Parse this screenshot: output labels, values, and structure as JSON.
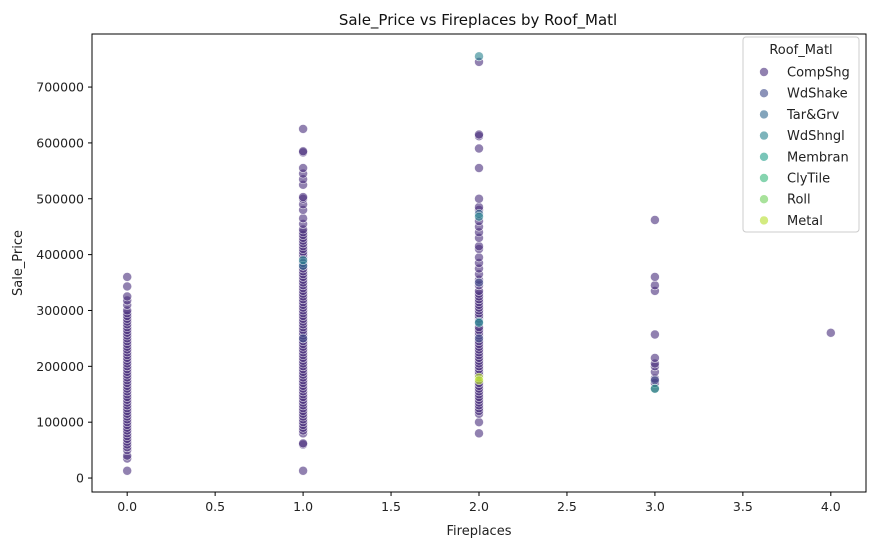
{
  "chart_data": {
    "type": "scatter",
    "title": "Sale_Price vs Fireplaces by Roof_Matl",
    "xlabel": "Fireplaces",
    "ylabel": "Sale_Price",
    "xlim": [
      -0.2,
      4.2
    ],
    "ylim": [
      -25000,
      795000
    ],
    "xticks": [
      0.0,
      0.5,
      1.0,
      1.5,
      2.0,
      2.5,
      3.0,
      3.5,
      4.0
    ],
    "xtick_labels": [
      "0.0",
      "0.5",
      "1.0",
      "1.5",
      "2.0",
      "2.5",
      "3.0",
      "3.5",
      "4.0"
    ],
    "yticks": [
      0,
      100000,
      200000,
      300000,
      400000,
      500000,
      600000,
      700000
    ],
    "ytick_labels": [
      "0",
      "100000",
      "200000",
      "300000",
      "400000",
      "500000",
      "600000",
      "700000"
    ],
    "grid": false,
    "marker_opacity": 0.6,
    "legend": {
      "title": "Roof_Matl",
      "placement": "top-right"
    },
    "series": [
      {
        "name": "CompShg",
        "color": "#472d7b",
        "points": [
          [
            0,
            13000
          ],
          [
            0,
            35000
          ],
          [
            0,
            40000
          ],
          [
            0,
            50000
          ],
          [
            0,
            55000
          ],
          [
            0,
            60000
          ],
          [
            0,
            65000
          ],
          [
            0,
            70000
          ],
          [
            0,
            75000
          ],
          [
            0,
            80000
          ],
          [
            0,
            85000
          ],
          [
            0,
            90000
          ],
          [
            0,
            95000
          ],
          [
            0,
            100000
          ],
          [
            0,
            105000
          ],
          [
            0,
            110000
          ],
          [
            0,
            115000
          ],
          [
            0,
            120000
          ],
          [
            0,
            125000
          ],
          [
            0,
            130000
          ],
          [
            0,
            135000
          ],
          [
            0,
            140000
          ],
          [
            0,
            145000
          ],
          [
            0,
            150000
          ],
          [
            0,
            155000
          ],
          [
            0,
            160000
          ],
          [
            0,
            165000
          ],
          [
            0,
            170000
          ],
          [
            0,
            175000
          ],
          [
            0,
            180000
          ],
          [
            0,
            185000
          ],
          [
            0,
            190000
          ],
          [
            0,
            195000
          ],
          [
            0,
            200000
          ],
          [
            0,
            205000
          ],
          [
            0,
            210000
          ],
          [
            0,
            215000
          ],
          [
            0,
            220000
          ],
          [
            0,
            225000
          ],
          [
            0,
            230000
          ],
          [
            0,
            235000
          ],
          [
            0,
            240000
          ],
          [
            0,
            245000
          ],
          [
            0,
            250000
          ],
          [
            0,
            255000
          ],
          [
            0,
            260000
          ],
          [
            0,
            265000
          ],
          [
            0,
            270000
          ],
          [
            0,
            275000
          ],
          [
            0,
            280000
          ],
          [
            0,
            285000
          ],
          [
            0,
            290000
          ],
          [
            0,
            295000
          ],
          [
            0,
            300000
          ],
          [
            0,
            310000
          ],
          [
            0,
            318000
          ],
          [
            0,
            325000
          ],
          [
            0,
            343000
          ],
          [
            0,
            360000
          ],
          [
            1,
            13000
          ],
          [
            1,
            60000
          ],
          [
            1,
            62000
          ],
          [
            1,
            80000
          ],
          [
            1,
            85000
          ],
          [
            1,
            90000
          ],
          [
            1,
            95000
          ],
          [
            1,
            100000
          ],
          [
            1,
            105000
          ],
          [
            1,
            110000
          ],
          [
            1,
            115000
          ],
          [
            1,
            120000
          ],
          [
            1,
            125000
          ],
          [
            1,
            130000
          ],
          [
            1,
            135000
          ],
          [
            1,
            140000
          ],
          [
            1,
            145000
          ],
          [
            1,
            150000
          ],
          [
            1,
            155000
          ],
          [
            1,
            160000
          ],
          [
            1,
            165000
          ],
          [
            1,
            170000
          ],
          [
            1,
            175000
          ],
          [
            1,
            180000
          ],
          [
            1,
            185000
          ],
          [
            1,
            190000
          ],
          [
            1,
            195000
          ],
          [
            1,
            200000
          ],
          [
            1,
            205000
          ],
          [
            1,
            210000
          ],
          [
            1,
            215000
          ],
          [
            1,
            220000
          ],
          [
            1,
            225000
          ],
          [
            1,
            230000
          ],
          [
            1,
            235000
          ],
          [
            1,
            240000
          ],
          [
            1,
            245000
          ],
          [
            1,
            250000
          ],
          [
            1,
            255000
          ],
          [
            1,
            260000
          ],
          [
            1,
            265000
          ],
          [
            1,
            270000
          ],
          [
            1,
            275000
          ],
          [
            1,
            280000
          ],
          [
            1,
            285000
          ],
          [
            1,
            290000
          ],
          [
            1,
            295000
          ],
          [
            1,
            300000
          ],
          [
            1,
            305000
          ],
          [
            1,
            310000
          ],
          [
            1,
            315000
          ],
          [
            1,
            320000
          ],
          [
            1,
            325000
          ],
          [
            1,
            330000
          ],
          [
            1,
            335000
          ],
          [
            1,
            340000
          ],
          [
            1,
            345000
          ],
          [
            1,
            350000
          ],
          [
            1,
            355000
          ],
          [
            1,
            360000
          ],
          [
            1,
            365000
          ],
          [
            1,
            370000
          ],
          [
            1,
            375000
          ],
          [
            1,
            380000
          ],
          [
            1,
            395000
          ],
          [
            1,
            400000
          ],
          [
            1,
            405000
          ],
          [
            1,
            410000
          ],
          [
            1,
            415000
          ],
          [
            1,
            420000
          ],
          [
            1,
            425000
          ],
          [
            1,
            430000
          ],
          [
            1,
            435000
          ],
          [
            1,
            440000
          ],
          [
            1,
            445000
          ],
          [
            1,
            455000
          ],
          [
            1,
            465000
          ],
          [
            1,
            480000
          ],
          [
            1,
            490000
          ],
          [
            1,
            500000
          ],
          [
            1,
            503000
          ],
          [
            1,
            525000
          ],
          [
            1,
            535000
          ],
          [
            1,
            545000
          ],
          [
            1,
            555000
          ],
          [
            1,
            583000
          ],
          [
            1,
            585000
          ],
          [
            1,
            625000
          ],
          [
            2,
            80000
          ],
          [
            2,
            100000
          ],
          [
            2,
            115000
          ],
          [
            2,
            120000
          ],
          [
            2,
            125000
          ],
          [
            2,
            130000
          ],
          [
            2,
            135000
          ],
          [
            2,
            140000
          ],
          [
            2,
            145000
          ],
          [
            2,
            150000
          ],
          [
            2,
            155000
          ],
          [
            2,
            160000
          ],
          [
            2,
            165000
          ],
          [
            2,
            170000
          ],
          [
            2,
            185000
          ],
          [
            2,
            190000
          ],
          [
            2,
            195000
          ],
          [
            2,
            200000
          ],
          [
            2,
            205000
          ],
          [
            2,
            210000
          ],
          [
            2,
            215000
          ],
          [
            2,
            220000
          ],
          [
            2,
            225000
          ],
          [
            2,
            230000
          ],
          [
            2,
            235000
          ],
          [
            2,
            240000
          ],
          [
            2,
            245000
          ],
          [
            2,
            255000
          ],
          [
            2,
            260000
          ],
          [
            2,
            265000
          ],
          [
            2,
            270000
          ],
          [
            2,
            285000
          ],
          [
            2,
            290000
          ],
          [
            2,
            295000
          ],
          [
            2,
            300000
          ],
          [
            2,
            305000
          ],
          [
            2,
            310000
          ],
          [
            2,
            315000
          ],
          [
            2,
            320000
          ],
          [
            2,
            325000
          ],
          [
            2,
            330000
          ],
          [
            2,
            335000
          ],
          [
            2,
            345000
          ],
          [
            2,
            355000
          ],
          [
            2,
            365000
          ],
          [
            2,
            375000
          ],
          [
            2,
            385000
          ],
          [
            2,
            395000
          ],
          [
            2,
            410000
          ],
          [
            2,
            415000
          ],
          [
            2,
            430000
          ],
          [
            2,
            440000
          ],
          [
            2,
            450000
          ],
          [
            2,
            460000
          ],
          [
            2,
            480000
          ],
          [
            2,
            485000
          ],
          [
            2,
            500000
          ],
          [
            2,
            555000
          ],
          [
            2,
            590000
          ],
          [
            2,
            612000
          ],
          [
            2,
            615000
          ],
          [
            2,
            745000
          ],
          [
            3,
            160000
          ],
          [
            3,
            170000
          ],
          [
            3,
            178000
          ],
          [
            3,
            190000
          ],
          [
            3,
            200000
          ],
          [
            3,
            205000
          ],
          [
            3,
            215000
          ],
          [
            3,
            257000
          ],
          [
            3,
            335000
          ],
          [
            3,
            345000
          ],
          [
            3,
            360000
          ],
          [
            3,
            462000
          ],
          [
            4,
            260000
          ]
        ]
      },
      {
        "name": "WdShake",
        "color": "#3e4a89",
        "points": [
          [
            1,
            385000
          ],
          [
            1,
            250000
          ],
          [
            2,
            250000
          ],
          [
            2,
            350000
          ],
          [
            3,
            175000
          ]
        ]
      },
      {
        "name": "Tar&Grv",
        "color": "#31688e",
        "points": [
          [
            1,
            380000
          ],
          [
            2,
            473000
          ],
          [
            2,
            280000
          ]
        ]
      },
      {
        "name": "WdShngl",
        "color": "#26828e",
        "points": [
          [
            1,
            390000
          ],
          [
            2,
            755000
          ],
          [
            2,
            468000
          ],
          [
            2,
            278000
          ]
        ]
      },
      {
        "name": "Membran",
        "color": "#1f9e89",
        "points": [
          [
            3,
            160000
          ]
        ]
      },
      {
        "name": "ClyTile",
        "color": "#35b779",
        "points": []
      },
      {
        "name": "Roll",
        "color": "#6ece58",
        "points": []
      },
      {
        "name": "Metal",
        "color": "#b5de2b",
        "points": [
          [
            2,
            180000
          ],
          [
            2,
            175000
          ]
        ]
      }
    ]
  }
}
